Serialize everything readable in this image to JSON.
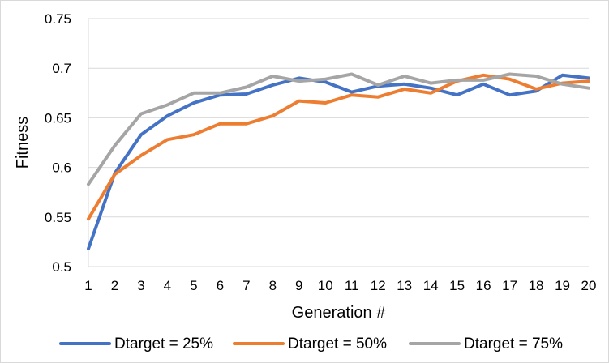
{
  "chart_data": {
    "type": "line",
    "title": "",
    "xlabel": "Generation #",
    "ylabel": "Fitness",
    "x": [
      1,
      2,
      3,
      4,
      5,
      6,
      7,
      8,
      9,
      10,
      11,
      12,
      13,
      14,
      15,
      16,
      17,
      18,
      19,
      20
    ],
    "xlim": [
      1,
      20
    ],
    "ylim": [
      0.5,
      0.75
    ],
    "ytick_labels": [
      "0.5",
      "0.55",
      "0.6",
      "0.65",
      "0.7",
      "0.75"
    ],
    "grid": "horizontal",
    "legend_position": "bottom",
    "series": [
      {
        "name": "Dtarget = 25%",
        "color": "#4472c4",
        "values": [
          0.518,
          0.594,
          0.633,
          0.652,
          0.665,
          0.673,
          0.674,
          0.683,
          0.69,
          0.686,
          0.676,
          0.682,
          0.684,
          0.68,
          0.673,
          0.684,
          0.673,
          0.677,
          0.693,
          0.69
        ]
      },
      {
        "name": "Dtarget = 50%",
        "color": "#ed7d31",
        "values": [
          0.548,
          0.593,
          0.612,
          0.628,
          0.633,
          0.644,
          0.644,
          0.652,
          0.667,
          0.665,
          0.673,
          0.671,
          0.679,
          0.675,
          0.687,
          0.693,
          0.689,
          0.679,
          0.685,
          0.687
        ]
      },
      {
        "name": "Dtarget = 75%",
        "color": "#a5a5a5",
        "values": [
          0.583,
          0.622,
          0.654,
          0.663,
          0.675,
          0.675,
          0.681,
          0.692,
          0.687,
          0.689,
          0.694,
          0.683,
          0.692,
          0.685,
          0.688,
          0.688,
          0.694,
          0.692,
          0.684,
          0.68
        ]
      }
    ]
  }
}
